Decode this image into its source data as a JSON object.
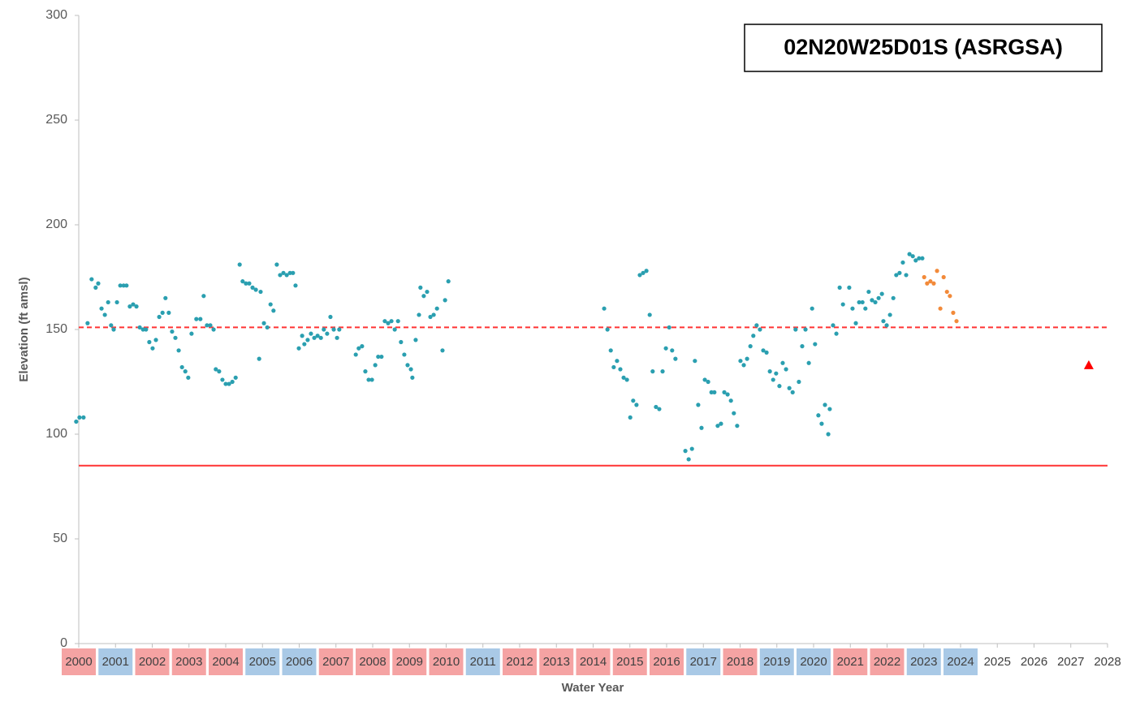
{
  "chart_data": {
    "type": "scatter",
    "title": "02N20W25D01S (ASRGSA)",
    "ylabel": "Elevation (ft amsl)",
    "xlabel": "Water Year",
    "xlim": [
      2000,
      2028
    ],
    "xticks": [
      2000,
      2001,
      2002,
      2003,
      2004,
      2005,
      2006,
      2007,
      2008,
      2009,
      2010,
      2011,
      2012,
      2013,
      2014,
      2015,
      2016,
      2017,
      2018,
      2019,
      2020,
      2021,
      2022,
      2023,
      2024,
      2025,
      2026,
      2027,
      2028
    ],
    "xtick_backgrounds": [
      "#f5a3a3",
      "#a9c9e6",
      "#f5a3a3",
      "#f5a3a3",
      "#f5a3a3",
      "#a9c9e6",
      "#a9c9e6",
      "#f5a3a3",
      "#f5a3a3",
      "#f5a3a3",
      "#f5a3a3",
      "#a9c9e6",
      "#f5a3a3",
      "#f5a3a3",
      "#f5a3a3",
      "#f5a3a3",
      "#f5a3a3",
      "#a9c9e6",
      "#f5a3a3",
      "#a9c9e6",
      "#a9c9e6",
      "#f5a3a3",
      "#f5a3a3",
      "#a9c9e6",
      "#a9c9e6",
      null,
      null,
      null,
      null
    ],
    "ylim": [
      0,
      300
    ],
    "yticks": [
      0,
      50,
      100,
      150,
      200,
      250,
      300
    ],
    "grid": false,
    "hlines": [
      {
        "value": 151,
        "color": "#ff3333",
        "style": "dashed"
      },
      {
        "value": 85,
        "color": "#ff3333",
        "style": "solid"
      }
    ],
    "series": [
      {
        "color": "#2a9fb0",
        "marker": "circle",
        "x": [
          1999.93,
          2000.02,
          2000.13,
          2000.24,
          2000.35,
          2000.46,
          2000.53,
          2000.62,
          2000.71,
          2000.8,
          2000.88,
          2000.95,
          2001.04,
          2001.13,
          2001.22,
          2001.3,
          2001.39,
          2001.48,
          2001.57,
          2001.66,
          2001.75,
          2001.83,
          2001.92,
          2002.01,
          2002.1,
          2002.19,
          2002.28,
          2002.36,
          2002.45,
          2002.54,
          2002.63,
          2002.72,
          2002.81,
          2002.9,
          2002.98,
          2003.07,
          2003.2,
          2003.31,
          2003.4,
          2003.49,
          2003.58,
          2003.67,
          2003.73,
          2003.82,
          2003.91,
          2004.0,
          2004.09,
          2004.18,
          2004.27,
          2004.38,
          2004.46,
          2004.55,
          2004.64,
          2004.73,
          2004.82,
          2004.91,
          2004.95,
          2005.04,
          2005.13,
          2005.22,
          2005.3,
          2005.39,
          2005.48,
          2005.57,
          2005.66,
          2005.75,
          2005.83,
          2005.9,
          2005.99,
          2006.08,
          2006.14,
          2006.23,
          2006.32,
          2006.41,
          2006.5,
          2006.59,
          2006.67,
          2006.76,
          2006.85,
          2006.94,
          2007.03,
          2007.09,
          2007.54,
          2007.62,
          2007.71,
          2007.8,
          2007.89,
          2007.98,
          2008.07,
          2008.15,
          2008.24,
          2008.33,
          2008.42,
          2008.51,
          2008.6,
          2008.69,
          2008.77,
          2008.86,
          2008.95,
          2009.04,
          2009.08,
          2009.17,
          2009.26,
          2009.3,
          2009.39,
          2009.48,
          2009.57,
          2009.66,
          2009.75,
          2009.9,
          2009.97,
          2010.06,
          2014.3,
          2014.39,
          2014.48,
          2014.56,
          2014.65,
          2014.74,
          2014.83,
          2014.92,
          2015.01,
          2015.09,
          2015.18,
          2015.27,
          2015.36,
          2015.45,
          2015.54,
          2015.62,
          2015.71,
          2015.8,
          2015.89,
          2015.98,
          2016.07,
          2016.15,
          2016.24,
          2016.51,
          2016.6,
          2016.69,
          2016.77,
          2016.86,
          2016.95,
          2017.04,
          2017.13,
          2017.22,
          2017.3,
          2017.39,
          2017.48,
          2017.57,
          2017.66,
          2017.75,
          2017.83,
          2017.92,
          2018.01,
          2018.1,
          2018.19,
          2018.28,
          2018.36,
          2018.45,
          2018.54,
          2018.63,
          2018.72,
          2018.81,
          2018.9,
          2018.98,
          2019.07,
          2019.16,
          2019.25,
          2019.34,
          2019.43,
          2019.51,
          2019.6,
          2019.69,
          2019.78,
          2019.87,
          2019.96,
          2020.04,
          2020.13,
          2020.22,
          2020.31,
          2020.4,
          2020.44,
          2020.53,
          2020.62,
          2020.71,
          2020.8,
          2020.97,
          2021.06,
          2021.15,
          2021.24,
          2021.33,
          2021.41,
          2021.5,
          2021.59,
          2021.68,
          2021.77,
          2021.86,
          2021.9,
          2021.99,
          2022.08,
          2022.17,
          2022.25,
          2022.34,
          2022.43,
          2022.52,
          2022.61,
          2022.7,
          2022.78,
          2022.87,
          2022.96
        ],
        "values": [
          106,
          108,
          108,
          153,
          174,
          170,
          172,
          160,
          157,
          163,
          152,
          150,
          163,
          171,
          171,
          171,
          161,
          162,
          161,
          151,
          150,
          150,
          144,
          141,
          145,
          156,
          158,
          165,
          158,
          149,
          146,
          140,
          132,
          130,
          127,
          148,
          155,
          155,
          166,
          152,
          152,
          150,
          131,
          130,
          126,
          124,
          124,
          125,
          127,
          181,
          173,
          172,
          172,
          170,
          169,
          136,
          168,
          153,
          151,
          162,
          159,
          181,
          176,
          177,
          176,
          177,
          177,
          171,
          141,
          147,
          143,
          145,
          148,
          146,
          147,
          146,
          150,
          148,
          156,
          150,
          146,
          150,
          138,
          141,
          142,
          130,
          126,
          126,
          133,
          137,
          137,
          154,
          153,
          154,
          150,
          154,
          144,
          138,
          133,
          131,
          127,
          145,
          157,
          170,
          166,
          168,
          156,
          157,
          160,
          140,
          164,
          173,
          160,
          150,
          140,
          132,
          135,
          131,
          127,
          126,
          108,
          116,
          114,
          176,
          177,
          178,
          157,
          130,
          113,
          112,
          130,
          141,
          151,
          140,
          136,
          92,
          88,
          93,
          135,
          114,
          103,
          126,
          125,
          120,
          120,
          104,
          105,
          120,
          119,
          116,
          110,
          104,
          135,
          133,
          136,
          142,
          147,
          152,
          150,
          140,
          139,
          130,
          126,
          129,
          123,
          134,
          131,
          122,
          120,
          150,
          125,
          142,
          150,
          134,
          160,
          143,
          109,
          105,
          114,
          100,
          112,
          152,
          148,
          170,
          162,
          170,
          160,
          153,
          163,
          163,
          160,
          168,
          164,
          163,
          165,
          167,
          154,
          152,
          157,
          165,
          176,
          177,
          182,
          176,
          186,
          185,
          183,
          184,
          184
        ]
      },
      {
        "color": "#f28a3a",
        "marker": "circle",
        "x": [
          2023.01,
          2023.09,
          2023.18,
          2023.27,
          2023.36,
          2023.45,
          2023.54,
          2023.63,
          2023.71,
          2023.8,
          2023.89
        ],
        "values": [
          175,
          172,
          173,
          172,
          178,
          160,
          175,
          168,
          166,
          158,
          154
        ]
      },
      {
        "color": "#ff0000",
        "marker": "triangle",
        "x": [
          2027.49
        ],
        "values": [
          133
        ]
      }
    ]
  }
}
